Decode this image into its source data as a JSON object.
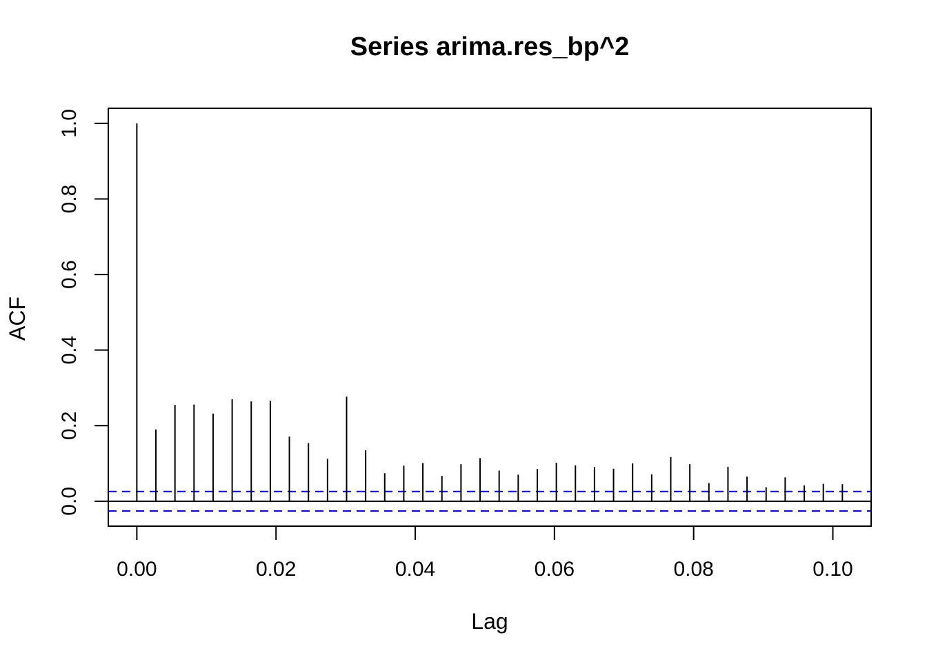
{
  "chart_data": {
    "type": "bar",
    "title": "Series  arima.res_bp^2",
    "xlabel": "Lag",
    "ylabel": "ACF",
    "xlim": [
      -0.0041,
      0.1055
    ],
    "ylim": [
      -0.066,
      1.04
    ],
    "x_ticks": [
      0.0,
      0.02,
      0.04,
      0.06,
      0.08,
      0.1
    ],
    "x_tick_labels": [
      "0.00",
      "0.02",
      "0.04",
      "0.06",
      "0.08",
      "0.10"
    ],
    "y_ticks": [
      0.0,
      0.2,
      0.4,
      0.6,
      0.8,
      1.0
    ],
    "y_tick_labels": [
      "0.0",
      "0.2",
      "0.4",
      "0.6",
      "0.8",
      "1.0"
    ],
    "lag_step": 0.002739726,
    "values": [
      1.0,
      0.19,
      0.255,
      0.256,
      0.232,
      0.27,
      0.264,
      0.266,
      0.171,
      0.154,
      0.112,
      0.277,
      0.135,
      0.074,
      0.094,
      0.101,
      0.067,
      0.098,
      0.114,
      0.081,
      0.07,
      0.085,
      0.102,
      0.095,
      0.091,
      0.086,
      0.1,
      0.071,
      0.117,
      0.098,
      0.048,
      0.091,
      0.065,
      0.037,
      0.063,
      0.042,
      0.046,
      0.045
    ],
    "confidence_bound": 0.0258,
    "grid": false,
    "colors": {
      "bars": "#000000",
      "confidence_lines": "#0000ff",
      "zero_line": "#000000"
    }
  }
}
